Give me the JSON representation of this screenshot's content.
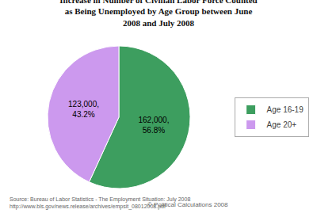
{
  "chart_data": {
    "type": "pie",
    "title": "Increase in Number of Civilian Labor Force Counted\nas Being Unemployed by Age Group between June\n2008 and July 2008",
    "categories": [
      "Age 16-19",
      "Age 20+"
    ],
    "values": [
      162000,
      123000
    ],
    "value_labels": [
      "162,000,\n56.8%",
      "123,000,\n43.2%"
    ],
    "colors": [
      "#3d9e5f",
      "#cc99ee"
    ],
    "data_labels": true,
    "legend": "right",
    "annotations": [
      "Source: Bureau of Labor Statistics - The Employment Situation: July 2008\nhttp://www.bls.gov/news.release/archives/empsit_08012008.pdf",
      "© Political Calculations 2008"
    ]
  }
}
